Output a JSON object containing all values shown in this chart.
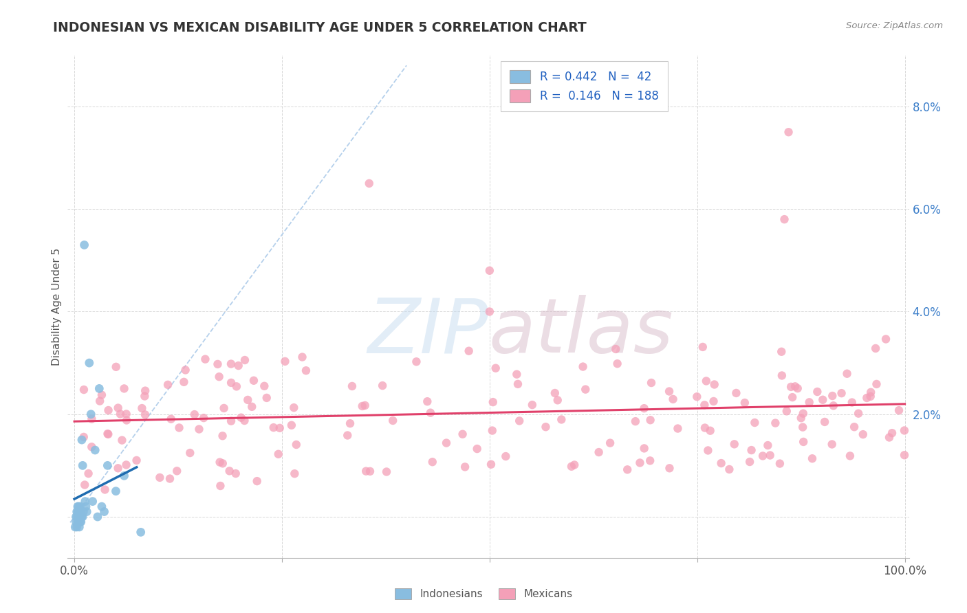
{
  "title": "INDONESIAN VS MEXICAN DISABILITY AGE UNDER 5 CORRELATION CHART",
  "source": "Source: ZipAtlas.com",
  "ylabel": "Disability Age Under 5",
  "color_indonesian": "#89bde0",
  "color_indonesian_line": "#1f6cb0",
  "color_mexican": "#f4a0b8",
  "color_mexican_line": "#e0406a",
  "color_dashed": "#a8c8e8",
  "background_color": "#ffffff",
  "grid_color": "#d8d8d8",
  "title_color": "#333333",
  "legend_text_color": "#2060c0",
  "source_color": "#888888"
}
